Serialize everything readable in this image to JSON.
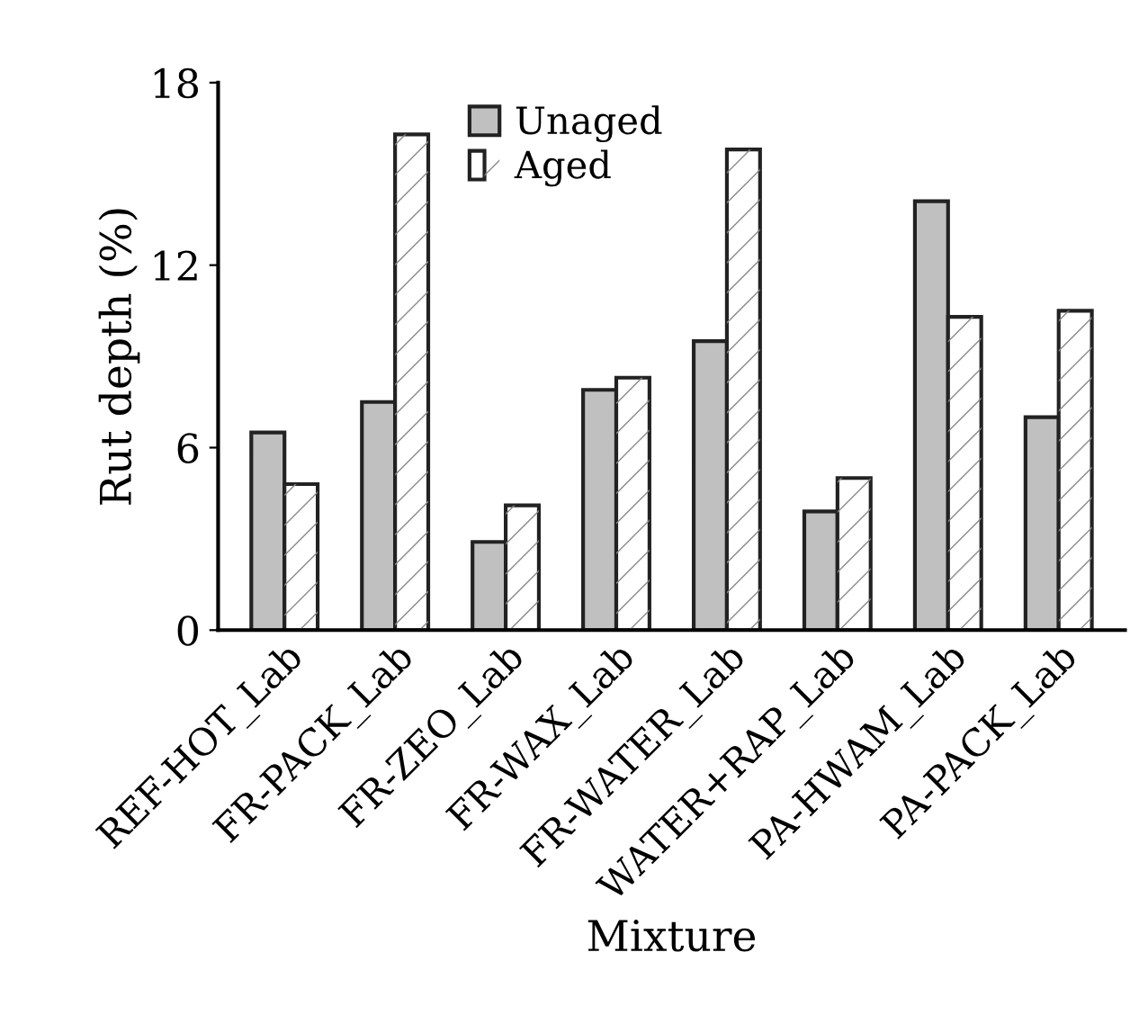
{
  "chart_data": {
    "type": "bar",
    "xlabel": "Mixture",
    "ylabel": "Rut depth (%)",
    "categories": [
      "REF-HOT_Lab",
      "FR-PACK_Lab",
      "FR-ZEO_Lab",
      "FR-WAX_Lab",
      "FR-WATER_Lab",
      "WATER+RAP_Lab",
      "PA-HWAM_Lab",
      "PA-PACK_Lab"
    ],
    "series": [
      {
        "name": "Unaged",
        "color": "#c0c0c0",
        "values": [
          6.5,
          7.5,
          2.9,
          7.9,
          9.5,
          3.9,
          14.1,
          7.0
        ]
      },
      {
        "name": "Aged",
        "color": "#ffffff",
        "values": [
          4.8,
          16.3,
          4.1,
          8.3,
          15.8,
          5.0,
          10.3,
          10.5
        ]
      }
    ],
    "ylim": [
      0,
      18
    ],
    "yticks": [
      0,
      6,
      12,
      18
    ],
    "grid": false,
    "legend": "top"
  }
}
